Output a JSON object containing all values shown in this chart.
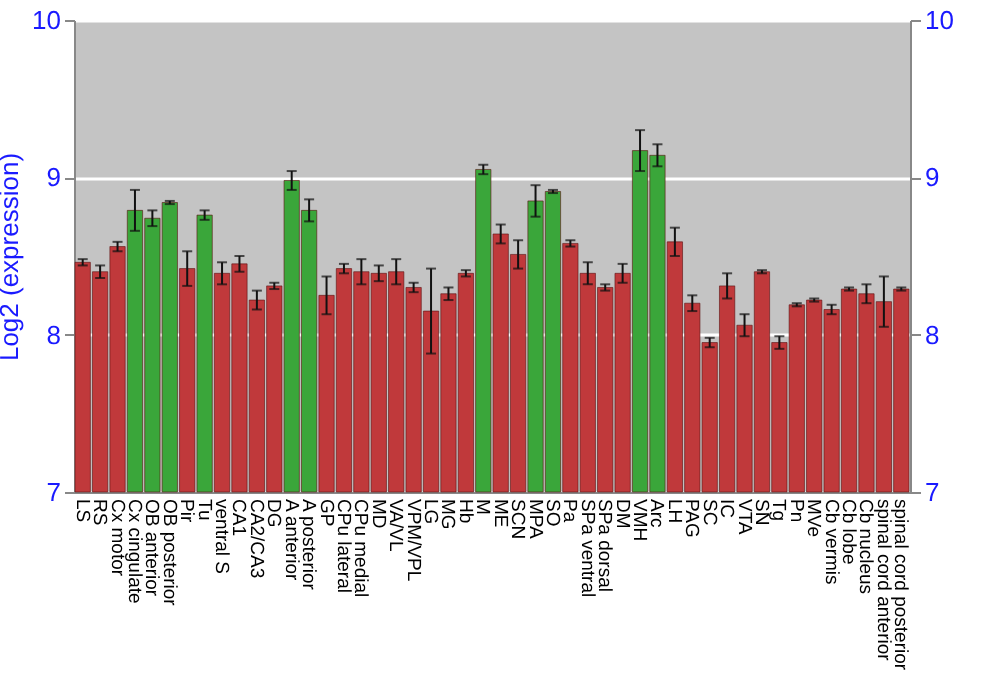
{
  "chart_data": {
    "type": "bar",
    "ylabel": "Log2 (expression)",
    "categories": [
      "LS",
      "RS",
      "Cx motor",
      "Cx cingulate",
      "OB anterior",
      "OB posterior",
      "Pir",
      "Tu",
      "ventral S",
      "CA1",
      "CA2/CA3",
      "DG",
      "A anterior",
      "A posterior",
      "GP",
      "CPu lateral",
      "CPu medial",
      "MD",
      "VA/VL",
      "VPM/VPL",
      "LG",
      "MG",
      "Hb",
      "M",
      "ME",
      "SCN",
      "MPA",
      "SO",
      "Pa",
      "SPa ventral",
      "SPa dorsal",
      "DM",
      "VMH",
      "Arc",
      "LH",
      "PAG",
      "SC",
      "IC",
      "VTA",
      "SN",
      "Tg",
      "Pn",
      "MVe",
      "Cb vermis",
      "Cb lobe",
      "Cb nucleus",
      "spinal cord anterior",
      "spinal cord posterior"
    ],
    "values": [
      8.46,
      8.4,
      8.56,
      8.79,
      8.74,
      8.84,
      8.42,
      8.76,
      8.39,
      8.45,
      8.22,
      8.31,
      8.98,
      8.79,
      8.25,
      8.42,
      8.4,
      8.39,
      8.4,
      8.3,
      8.15,
      8.26,
      8.39,
      9.05,
      8.64,
      8.51,
      8.85,
      8.91,
      8.58,
      8.39,
      8.3,
      8.39,
      9.17,
      9.14,
      8.59,
      8.2,
      7.95,
      8.31,
      8.06,
      8.4,
      7.95,
      8.19,
      8.22,
      8.16,
      8.29,
      8.26,
      8.21,
      8.29
    ],
    "errors": [
      0.02,
      0.04,
      0.03,
      0.13,
      0.05,
      0.01,
      0.11,
      0.03,
      0.07,
      0.05,
      0.06,
      0.02,
      0.06,
      0.07,
      0.12,
      0.03,
      0.08,
      0.05,
      0.08,
      0.03,
      0.27,
      0.04,
      0.02,
      0.03,
      0.06,
      0.09,
      0.1,
      0.01,
      0.02,
      0.07,
      0.02,
      0.06,
      0.13,
      0.07,
      0.09,
      0.05,
      0.03,
      0.08,
      0.07,
      0.01,
      0.04,
      0.01,
      0.01,
      0.03,
      0.01,
      0.06,
      0.16,
      0.01
    ],
    "colors": [
      "#c0393b",
      "#c0393b",
      "#c0393b",
      "#3aa63a",
      "#3aa63a",
      "#3aa63a",
      "#c0393b",
      "#3aa63a",
      "#c0393b",
      "#c0393b",
      "#c0393b",
      "#c0393b",
      "#3aa63a",
      "#3aa63a",
      "#c0393b",
      "#c0393b",
      "#c0393b",
      "#c0393b",
      "#c0393b",
      "#c0393b",
      "#c0393b",
      "#c0393b",
      "#c0393b",
      "#3aa63a",
      "#c0393b",
      "#c0393b",
      "#3aa63a",
      "#3aa63a",
      "#c0393b",
      "#c0393b",
      "#c0393b",
      "#c0393b",
      "#3aa63a",
      "#3aa63a",
      "#c0393b",
      "#c0393b",
      "#c0393b",
      "#c0393b",
      "#c0393b",
      "#c0393b",
      "#c0393b",
      "#c0393b",
      "#c0393b",
      "#c0393b",
      "#c0393b",
      "#c0393b",
      "#c0393b",
      "#c0393b"
    ],
    "ylim": [
      7,
      10
    ],
    "yticks": [
      7,
      8,
      9,
      10
    ],
    "y2lim": [
      7,
      10
    ],
    "y2ticks": [
      7,
      8,
      9,
      10
    ],
    "grid": "y"
  }
}
